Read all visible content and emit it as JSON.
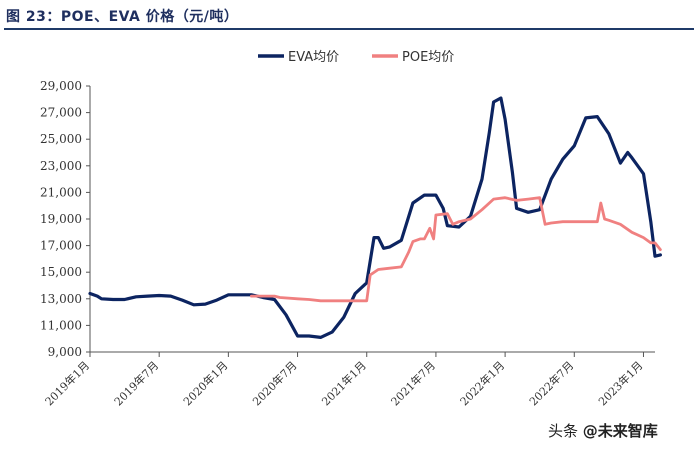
{
  "title": "图 23：POE、EVA 价格（元/吨）",
  "watermark": {
    "platform": "头条",
    "handle": "@未来智库"
  },
  "chart_data": {
    "type": "line",
    "ylim": [
      9000,
      29000
    ],
    "yticks": [
      "9,000",
      "11,000",
      "13,000",
      "15,000",
      "17,000",
      "19,000",
      "21,000",
      "23,000",
      "25,000",
      "27,000",
      "29,000"
    ],
    "ytick_values": [
      9000,
      11000,
      13000,
      15000,
      17000,
      19000,
      21000,
      23000,
      25000,
      27000,
      29000
    ],
    "xlim": [
      "2019-01",
      "2023-02"
    ],
    "xticks": [
      {
        "label": "2019年1月",
        "x": "2019-01"
      },
      {
        "label": "2019年7月",
        "x": "2019-07"
      },
      {
        "label": "2020年1月",
        "x": "2020-01"
      },
      {
        "label": "2020年7月",
        "x": "2020-07"
      },
      {
        "label": "2021年1月",
        "x": "2021-01"
      },
      {
        "label": "2021年7月",
        "x": "2021-07"
      },
      {
        "label": "2022年1月",
        "x": "2022-01"
      },
      {
        "label": "2022年7月",
        "x": "2022-07"
      },
      {
        "label": "2023年1月",
        "x": "2023-01"
      }
    ],
    "legend_position": "top-center",
    "grid": false,
    "series": [
      {
        "name": "EVA均价",
        "color": "#0c2461",
        "points": [
          [
            "2019-01",
            13400
          ],
          [
            "2019-01-20",
            13200
          ],
          [
            "2019-02",
            13000
          ],
          [
            "2019-03",
            12950
          ],
          [
            "2019-04",
            12950
          ],
          [
            "2019-05",
            13150
          ],
          [
            "2019-06",
            13200
          ],
          [
            "2019-07",
            13250
          ],
          [
            "2019-08",
            13200
          ],
          [
            "2019-09",
            12900
          ],
          [
            "2019-10",
            12550
          ],
          [
            "2019-11",
            12600
          ],
          [
            "2019-12",
            12900
          ],
          [
            "2020-01",
            13300
          ],
          [
            "2020-02",
            13300
          ],
          [
            "2020-03",
            13300
          ],
          [
            "2020-04",
            13100
          ],
          [
            "2020-05",
            12950
          ],
          [
            "2020-06",
            11800
          ],
          [
            "2020-07",
            10200
          ],
          [
            "2020-08",
            10200
          ],
          [
            "2020-09",
            10100
          ],
          [
            "2020-10",
            10500
          ],
          [
            "2020-11",
            11600
          ],
          [
            "2020-12",
            13400
          ],
          [
            "2021-01",
            14200
          ],
          [
            "2021-01-20",
            17600
          ],
          [
            "2021-02",
            17600
          ],
          [
            "2021-02-15",
            16800
          ],
          [
            "2021-03",
            16900
          ],
          [
            "2021-04",
            17400
          ],
          [
            "2021-05",
            20200
          ],
          [
            "2021-06",
            20800
          ],
          [
            "2021-07",
            20800
          ],
          [
            "2021-07-20",
            19800
          ],
          [
            "2021-08",
            18500
          ],
          [
            "2021-09",
            18400
          ],
          [
            "2021-10",
            19200
          ],
          [
            "2021-11",
            22000
          ],
          [
            "2021-11-20",
            25500
          ],
          [
            "2021-12",
            27800
          ],
          [
            "2021-12-20",
            28100
          ],
          [
            "2022-01",
            26500
          ],
          [
            "2022-01-20",
            22500
          ],
          [
            "2022-02",
            19800
          ],
          [
            "2022-03",
            19500
          ],
          [
            "2022-04",
            19700
          ],
          [
            "2022-05",
            22000
          ],
          [
            "2022-06",
            23500
          ],
          [
            "2022-07",
            24500
          ],
          [
            "2022-08",
            26600
          ],
          [
            "2022-09",
            26700
          ],
          [
            "2022-10",
            25400
          ],
          [
            "2022-11",
            23200
          ],
          [
            "2022-11-20",
            24000
          ],
          [
            "2022-12",
            23600
          ],
          [
            "2023-01",
            22400
          ],
          [
            "2023-01-20",
            18800
          ],
          [
            "2023-02",
            16200
          ],
          [
            "2023-02-15",
            16300
          ]
        ]
      },
      {
        "name": "POE均价",
        "color": "#f08080",
        "points": [
          [
            "2020-03",
            13200
          ],
          [
            "2020-05",
            13200
          ],
          [
            "2020-05-15",
            13100
          ],
          [
            "2020-07",
            13000
          ],
          [
            "2020-08",
            12950
          ],
          [
            "2020-09",
            12850
          ],
          [
            "2020-12",
            12850
          ],
          [
            "2021-01",
            12850
          ],
          [
            "2021-01-10",
            14800
          ],
          [
            "2021-02",
            15200
          ],
          [
            "2021-03",
            15300
          ],
          [
            "2021-04",
            15400
          ],
          [
            "2021-04-20",
            16500
          ],
          [
            "2021-05",
            17300
          ],
          [
            "2021-05-20",
            17500
          ],
          [
            "2021-06",
            17500
          ],
          [
            "2021-06-15",
            18300
          ],
          [
            "2021-06-25",
            17500
          ],
          [
            "2021-07",
            19300
          ],
          [
            "2021-08",
            19400
          ],
          [
            "2021-08-15",
            18600
          ],
          [
            "2021-09",
            18800
          ],
          [
            "2021-10",
            19000
          ],
          [
            "2021-11",
            19700
          ],
          [
            "2021-12",
            20500
          ],
          [
            "2022-01",
            20600
          ],
          [
            "2022-02",
            20400
          ],
          [
            "2022-03",
            20500
          ],
          [
            "2022-04",
            20600
          ],
          [
            "2022-04-15",
            18600
          ],
          [
            "2022-05",
            18700
          ],
          [
            "2022-06",
            18800
          ],
          [
            "2022-07",
            18800
          ],
          [
            "2022-08",
            18800
          ],
          [
            "2022-09",
            18800
          ],
          [
            "2022-09-10",
            20200
          ],
          [
            "2022-09-20",
            19000
          ],
          [
            "2022-10",
            18900
          ],
          [
            "2022-11",
            18600
          ],
          [
            "2022-12",
            18000
          ],
          [
            "2023-01",
            17600
          ],
          [
            "2023-01-20",
            17200
          ],
          [
            "2023-02",
            17200
          ],
          [
            "2023-02-15",
            16700
          ]
        ]
      }
    ]
  }
}
